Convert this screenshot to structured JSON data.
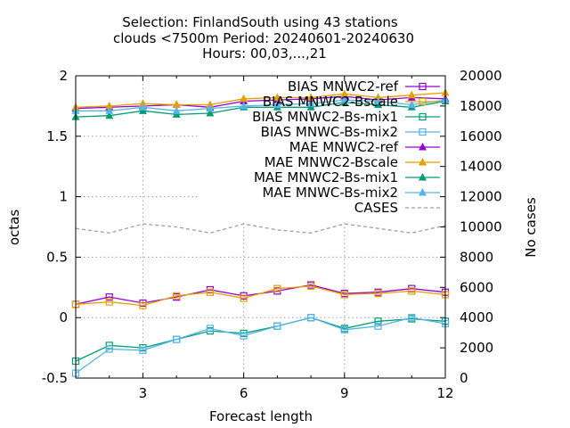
{
  "chart_data": {
    "type": "line",
    "title_lines": [
      "Selection: FinlandSouth using    43 stations",
      "clouds <7500m   Period: 20240601-20240630",
      "Hours: 00,03,...,21"
    ],
    "xlabel": "Forecast length",
    "ylabel": "octas",
    "y2label": "No cases",
    "xlim": [
      1,
      12
    ],
    "ylim": [
      -0.5,
      2
    ],
    "y2lim": [
      0,
      20000
    ],
    "xticks": [
      3,
      6,
      9,
      12
    ],
    "yticks": [
      -0.5,
      0,
      0.5,
      1,
      1.5,
      2
    ],
    "y2ticks": [
      0,
      2000,
      4000,
      6000,
      8000,
      10000,
      12000,
      14000,
      16000,
      18000,
      20000
    ],
    "ytick_labels": [
      "-0.5",
      "0",
      "0.5",
      "1",
      "1.5",
      "2"
    ],
    "y2tick_labels": [
      "0",
      "2000",
      "4000",
      "6000",
      "8000",
      "10000",
      "12000",
      "14000",
      "16000",
      "18000",
      "20000"
    ],
    "xtick_labels": [
      "3",
      "6",
      "9",
      "12"
    ],
    "grid": true,
    "legend_position": "top-right",
    "x": [
      1,
      2,
      3,
      4,
      5,
      6,
      7,
      8,
      9,
      10,
      11,
      12
    ],
    "series": [
      {
        "name": "BIAS MNWC2-ref",
        "color": "#9400d3",
        "marker": "open-square",
        "axis": "y",
        "values": [
          0.11,
          0.17,
          0.12,
          0.17,
          0.23,
          0.18,
          0.22,
          0.27,
          0.2,
          0.21,
          0.24,
          0.21
        ]
      },
      {
        "name": "BIAS MNWC2-Bscale",
        "color": "#e69f00",
        "marker": "open-square",
        "axis": "y",
        "values": [
          0.11,
          0.13,
          0.1,
          0.18,
          0.21,
          0.16,
          0.24,
          0.26,
          0.19,
          0.2,
          0.22,
          0.19
        ]
      },
      {
        "name": "BIAS MNWC2-Bs-mix1",
        "color": "#009e73",
        "marker": "open-square",
        "axis": "y",
        "values": [
          -0.36,
          -0.23,
          -0.25,
          -0.18,
          -0.11,
          -0.13,
          -0.07,
          0.0,
          -0.09,
          -0.03,
          -0.01,
          -0.03
        ]
      },
      {
        "name": "BIAS MNWC-Bs-mix2",
        "color": "#56b4e9",
        "marker": "open-square",
        "axis": "y",
        "values": [
          -0.46,
          -0.26,
          -0.27,
          -0.18,
          -0.09,
          -0.15,
          -0.07,
          0.0,
          -0.1,
          -0.07,
          0.0,
          -0.05
        ]
      },
      {
        "name": "MAE MNWC2-ref",
        "color": "#9400d3",
        "marker": "filled-triangle",
        "axis": "y",
        "values": [
          1.73,
          1.74,
          1.75,
          1.76,
          1.74,
          1.79,
          1.8,
          1.81,
          1.83,
          1.8,
          1.82,
          1.81
        ]
      },
      {
        "name": "MAE MNWC2-Bscale",
        "color": "#e69f00",
        "marker": "filled-triangle",
        "axis": "y",
        "values": [
          1.74,
          1.75,
          1.77,
          1.76,
          1.76,
          1.81,
          1.82,
          1.82,
          1.85,
          1.82,
          1.84,
          1.86
        ]
      },
      {
        "name": "MAE MNWC2-Bs-mix1",
        "color": "#009e73",
        "marker": "filled-triangle",
        "axis": "y",
        "values": [
          1.66,
          1.67,
          1.71,
          1.68,
          1.69,
          1.74,
          1.74,
          1.74,
          1.78,
          1.76,
          1.74,
          1.79
        ]
      },
      {
        "name": "MAE MNWC-Bs-mix2",
        "color": "#56b4e9",
        "marker": "filled-triangle",
        "axis": "y",
        "values": [
          1.71,
          1.71,
          1.74,
          1.71,
          1.73,
          1.75,
          1.76,
          1.77,
          1.8,
          1.79,
          1.76,
          1.8
        ]
      },
      {
        "name": "CASES",
        "color": "#a0a0a0",
        "marker": "none",
        "dash": true,
        "axis": "y2",
        "values": [
          9900,
          9600,
          10200,
          10000,
          9600,
          10200,
          9800,
          9600,
          10200,
          9900,
          9600,
          10100
        ]
      }
    ]
  }
}
